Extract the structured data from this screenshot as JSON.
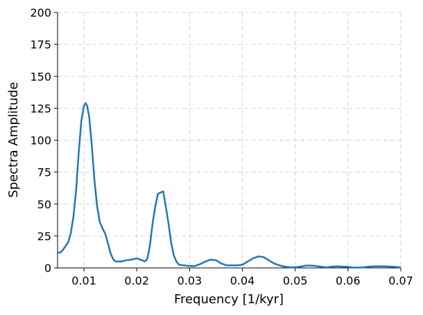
{
  "chart_data": {
    "type": "line",
    "xlabel": "Frequency [1/kyr]",
    "ylabel": "Spectra Amplitude",
    "x": [
      0.005,
      0.0055,
      0.006,
      0.0065,
      0.007,
      0.0075,
      0.008,
      0.0085,
      0.009,
      0.0095,
      0.01,
      0.0103,
      0.0106,
      0.011,
      0.0115,
      0.012,
      0.0125,
      0.013,
      0.0135,
      0.014,
      0.0145,
      0.015,
      0.0155,
      0.016,
      0.017,
      0.018,
      0.019,
      0.02,
      0.021,
      0.0215,
      0.022,
      0.0225,
      0.023,
      0.0235,
      0.024,
      0.0245,
      0.025,
      0.0255,
      0.026,
      0.0265,
      0.027,
      0.0275,
      0.028,
      0.029,
      0.03,
      0.031,
      0.032,
      0.033,
      0.034,
      0.035,
      0.036,
      0.037,
      0.038,
      0.039,
      0.04,
      0.041,
      0.042,
      0.043,
      0.044,
      0.045,
      0.046,
      0.047,
      0.048,
      0.049,
      0.05,
      0.051,
      0.052,
      0.053,
      0.054,
      0.055,
      0.056,
      0.057,
      0.058,
      0.059,
      0.06,
      0.061,
      0.062,
      0.063,
      0.064,
      0.065,
      0.066,
      0.067,
      0.068,
      0.069,
      0.07
    ],
    "series": [
      {
        "color": "#1f77b4",
        "values": [
          12,
          12,
          14,
          17,
          20,
          27,
          40,
          60,
          90,
          115,
          127,
          129,
          127,
          118,
          95,
          68,
          48,
          36,
          31,
          27,
          20,
          12,
          7,
          5,
          5,
          6,
          6.5,
          7.5,
          6,
          5,
          7,
          18,
          35,
          48,
          58,
          59,
          60,
          48,
          35,
          20,
          10,
          5,
          2.5,
          2,
          1.5,
          1.5,
          3,
          5,
          6.5,
          6,
          3.5,
          2,
          2,
          2,
          2.5,
          5,
          7.5,
          9,
          8.5,
          6,
          3.5,
          2,
          1,
          0.5,
          0.5,
          1,
          1.8,
          1.8,
          1.5,
          0.8,
          0.5,
          1,
          1.2,
          1,
          0.8,
          0.3,
          0.3,
          0.5,
          1,
          1.2,
          1.3,
          1.2,
          1,
          0.8,
          0.5
        ]
      }
    ],
    "xlim": [
      0.005,
      0.07
    ],
    "ylim": [
      0,
      200
    ],
    "xticks": [
      0.01,
      0.02,
      0.03,
      0.04,
      0.05,
      0.06,
      0.07
    ],
    "yticks": [
      0,
      25,
      50,
      75,
      100,
      125,
      150,
      175,
      200
    ],
    "grid": true
  }
}
